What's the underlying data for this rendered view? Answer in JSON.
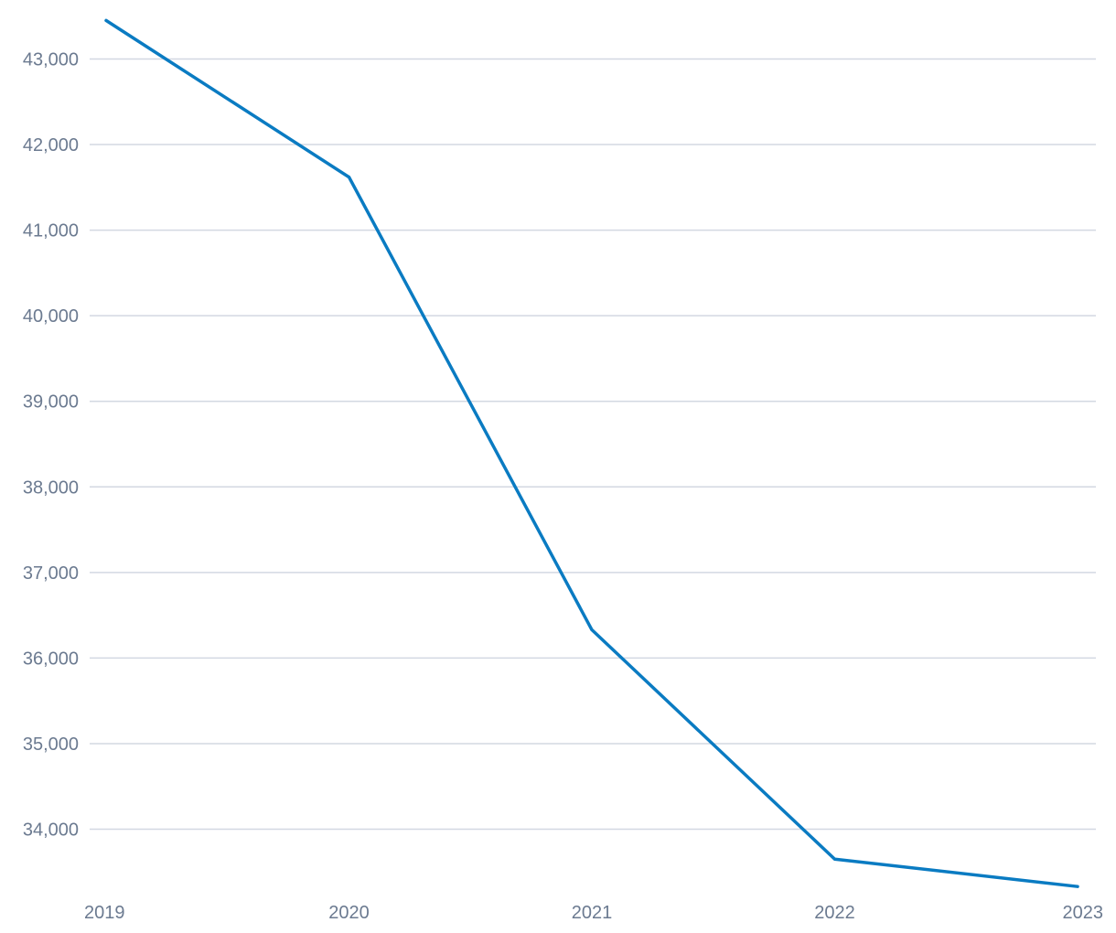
{
  "chart_data": {
    "type": "line",
    "title": "",
    "xlabel": "",
    "ylabel": "",
    "categories": [
      "2019",
      "2020",
      "2021",
      "2022",
      "2023"
    ],
    "series": [
      {
        "values": [
          43450,
          41620,
          36330,
          33650,
          33330
        ]
      }
    ],
    "y_ticks": [
      34000,
      35000,
      36000,
      37000,
      38000,
      39000,
      40000,
      41000,
      42000,
      43000
    ],
    "y_tick_labels": [
      "34,000",
      "35,000",
      "36,000",
      "37,000",
      "38,000",
      "39,000",
      "40,000",
      "41,000",
      "42,000",
      "43,000"
    ],
    "ylim": [
      33000,
      43450
    ],
    "grid": true,
    "legend": "none"
  },
  "colors": {
    "line": "#0a7bc2",
    "grid": "#d3d8e2",
    "tick_text": "#6b7a90"
  }
}
